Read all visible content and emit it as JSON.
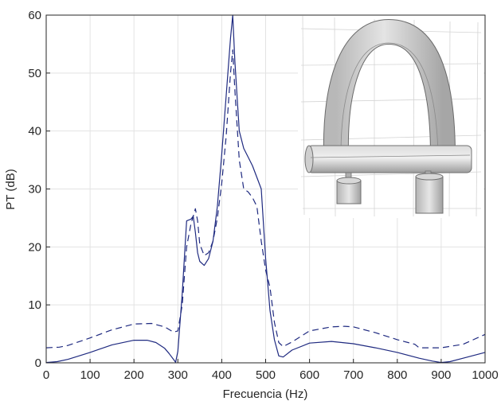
{
  "chart_data": {
    "type": "line",
    "title": "",
    "xlabel": "Frecuencia (Hz)",
    "ylabel": "PT (dB)",
    "xlim": [
      0,
      1000
    ],
    "ylim": [
      0,
      60
    ],
    "xticks": [
      "0",
      "100",
      "200",
      "300",
      "400",
      "500",
      "600",
      "700",
      "800",
      "900",
      "1000"
    ],
    "yticks": [
      "0",
      "10",
      "20",
      "30",
      "40",
      "50",
      "60"
    ],
    "grid": true,
    "legend": "none",
    "colors": {
      "line": "#1f2a80",
      "axis": "#262626",
      "grid": "#e3e3e3"
    },
    "series": [
      {
        "style": "solid",
        "x": [
          0,
          25,
          50,
          100,
          150,
          200,
          230,
          250,
          270,
          280,
          290,
          295,
          300,
          310,
          320,
          330,
          335,
          340,
          345,
          350,
          360,
          370,
          380,
          390,
          400,
          410,
          420,
          425,
          430,
          440,
          450,
          460,
          470,
          480,
          490,
          500,
          510,
          520,
          530,
          540,
          560,
          600,
          650,
          700,
          750,
          800,
          850,
          880,
          900,
          920,
          950,
          1000
        ],
        "y": [
          0.05,
          0.2,
          0.6,
          1.8,
          3.1,
          3.9,
          3.9,
          3.5,
          2.5,
          1.6,
          0.6,
          0.1,
          2.0,
          12.0,
          24.5,
          24.8,
          25.3,
          22.5,
          19.0,
          17.5,
          16.8,
          18.0,
          21.0,
          27.0,
          36.0,
          46.0,
          56.0,
          60.0,
          52.0,
          40.0,
          37.0,
          35.5,
          34.0,
          32.0,
          30.0,
          18.0,
          9.0,
          4.0,
          1.2,
          1.0,
          2.2,
          3.4,
          3.7,
          3.3,
          2.6,
          1.8,
          0.8,
          0.3,
          0.05,
          0.2,
          0.8,
          1.8
        ]
      },
      {
        "style": "dashed",
        "x": [
          0,
          30,
          50,
          100,
          150,
          200,
          240,
          270,
          290,
          300,
          310,
          320,
          330,
          340,
          345,
          350,
          360,
          370,
          380,
          390,
          400,
          410,
          420,
          425,
          430,
          440,
          450,
          460,
          470,
          480,
          490,
          500,
          510,
          520,
          530,
          540,
          560,
          600,
          650,
          680,
          700,
          750,
          800,
          840,
          850,
          870,
          900,
          950,
          1000
        ],
        "y": [
          2.6,
          2.7,
          3.0,
          4.3,
          5.7,
          6.7,
          6.8,
          6.2,
          5.3,
          5.5,
          10.0,
          20.0,
          24.0,
          26.6,
          24.5,
          20.5,
          18.5,
          19.0,
          21.0,
          25.0,
          31.0,
          39.0,
          50.0,
          54.0,
          47.0,
          35.0,
          30.0,
          29.5,
          28.5,
          27.0,
          21.0,
          16.0,
          13.0,
          7.0,
          3.5,
          2.8,
          3.6,
          5.5,
          6.2,
          6.3,
          6.2,
          5.2,
          4.0,
          3.2,
          2.6,
          2.6,
          2.6,
          3.2,
          4.9
        ]
      }
    ]
  },
  "inset": {
    "alt_text": ""
  }
}
